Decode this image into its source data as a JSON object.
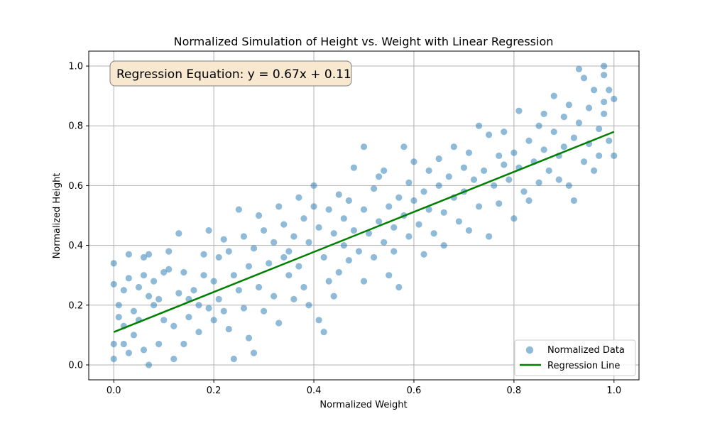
{
  "chart_data": {
    "type": "scatter",
    "title": "Normalized Simulation of Height vs. Weight with Linear Regression",
    "xlabel": "Normalized Weight",
    "ylabel": "Normalized Height",
    "xlim": [
      -0.05,
      1.05
    ],
    "ylim": [
      -0.05,
      1.05
    ],
    "xticks": [
      "0.0",
      "0.2",
      "0.4",
      "0.6",
      "0.8",
      "1.0"
    ],
    "yticks": [
      "0.0",
      "0.2",
      "0.4",
      "0.6",
      "0.8",
      "1.0"
    ],
    "grid": true,
    "legend_placement": "lower-right",
    "annotation": "Regression Equation: y = 0.67x + 0.11",
    "series": [
      {
        "name": "Normalized Data",
        "kind": "scatter",
        "color": "#1f77b4",
        "points": [
          [
            0.0,
            0.34
          ],
          [
            0.0,
            0.27
          ],
          [
            0.0,
            0.07
          ],
          [
            0.0,
            0.02
          ],
          [
            0.01,
            0.2
          ],
          [
            0.01,
            0.16
          ],
          [
            0.02,
            0.25
          ],
          [
            0.02,
            0.13
          ],
          [
            0.02,
            0.07
          ],
          [
            0.03,
            0.37
          ],
          [
            0.03,
            0.29
          ],
          [
            0.03,
            0.04
          ],
          [
            0.04,
            0.18
          ],
          [
            0.04,
            0.1
          ],
          [
            0.05,
            0.15
          ],
          [
            0.05,
            0.26
          ],
          [
            0.06,
            0.3
          ],
          [
            0.06,
            0.36
          ],
          [
            0.06,
            0.05
          ],
          [
            0.07,
            0.0
          ],
          [
            0.07,
            0.37
          ],
          [
            0.07,
            0.23
          ],
          [
            0.08,
            0.28
          ],
          [
            0.08,
            0.2
          ],
          [
            0.09,
            0.07
          ],
          [
            0.09,
            0.22
          ],
          [
            0.1,
            0.31
          ],
          [
            0.1,
            0.15
          ],
          [
            0.11,
            0.32
          ],
          [
            0.11,
            0.38
          ],
          [
            0.12,
            0.02
          ],
          [
            0.12,
            0.13
          ],
          [
            0.13,
            0.24
          ],
          [
            0.13,
            0.44
          ],
          [
            0.14,
            0.31
          ],
          [
            0.14,
            0.07
          ],
          [
            0.15,
            0.22
          ],
          [
            0.15,
            0.16
          ],
          [
            0.16,
            0.25
          ],
          [
            0.17,
            0.2
          ],
          [
            0.17,
            0.11
          ],
          [
            0.18,
            0.3
          ],
          [
            0.18,
            0.37
          ],
          [
            0.19,
            0.45
          ],
          [
            0.19,
            0.19
          ],
          [
            0.2,
            0.28
          ],
          [
            0.2,
            0.15
          ],
          [
            0.21,
            0.36
          ],
          [
            0.21,
            0.22
          ],
          [
            0.22,
            0.42
          ],
          [
            0.22,
            0.18
          ],
          [
            0.23,
            0.38
          ],
          [
            0.23,
            0.12
          ],
          [
            0.24,
            0.3
          ],
          [
            0.24,
            0.02
          ],
          [
            0.25,
            0.52
          ],
          [
            0.25,
            0.25
          ],
          [
            0.26,
            0.43
          ],
          [
            0.26,
            0.19
          ],
          [
            0.27,
            0.33
          ],
          [
            0.27,
            0.09
          ],
          [
            0.28,
            0.39
          ],
          [
            0.28,
            0.04
          ],
          [
            0.29,
            0.5
          ],
          [
            0.29,
            0.26
          ],
          [
            0.3,
            0.45
          ],
          [
            0.3,
            0.18
          ],
          [
            0.31,
            0.34
          ],
          [
            0.32,
            0.41
          ],
          [
            0.32,
            0.23
          ],
          [
            0.33,
            0.53
          ],
          [
            0.33,
            0.14
          ],
          [
            0.34,
            0.47
          ],
          [
            0.34,
            0.36
          ],
          [
            0.35,
            0.3
          ],
          [
            0.35,
            0.38
          ],
          [
            0.36,
            0.43
          ],
          [
            0.36,
            0.22
          ],
          [
            0.37,
            0.56
          ],
          [
            0.37,
            0.33
          ],
          [
            0.38,
            0.49
          ],
          [
            0.38,
            0.26
          ],
          [
            0.39,
            0.41
          ],
          [
            0.39,
            0.2
          ],
          [
            0.4,
            0.53
          ],
          [
            0.4,
            0.6
          ],
          [
            0.41,
            0.46
          ],
          [
            0.41,
            0.15
          ],
          [
            0.42,
            0.36
          ],
          [
            0.42,
            0.11
          ],
          [
            0.43,
            0.52
          ],
          [
            0.43,
            0.28
          ],
          [
            0.44,
            0.44
          ],
          [
            0.44,
            0.23
          ],
          [
            0.45,
            0.57
          ],
          [
            0.45,
            0.31
          ],
          [
            0.46,
            0.4
          ],
          [
            0.46,
            0.49
          ],
          [
            0.47,
            0.35
          ],
          [
            0.47,
            0.55
          ],
          [
            0.48,
            0.45
          ],
          [
            0.48,
            0.66
          ],
          [
            0.49,
            0.38
          ],
          [
            0.5,
            0.73
          ],
          [
            0.5,
            0.52
          ],
          [
            0.5,
            0.28
          ],
          [
            0.51,
            0.44
          ],
          [
            0.52,
            0.59
          ],
          [
            0.52,
            0.36
          ],
          [
            0.53,
            0.63
          ],
          [
            0.53,
            0.48
          ],
          [
            0.54,
            0.41
          ],
          [
            0.54,
            0.65
          ],
          [
            0.55,
            0.53
          ],
          [
            0.55,
            0.3
          ],
          [
            0.56,
            0.46
          ],
          [
            0.56,
            0.38
          ],
          [
            0.57,
            0.56
          ],
          [
            0.57,
            0.26
          ],
          [
            0.58,
            0.73
          ],
          [
            0.58,
            0.5
          ],
          [
            0.59,
            0.43
          ],
          [
            0.59,
            0.61
          ],
          [
            0.6,
            0.55
          ],
          [
            0.6,
            0.68
          ],
          [
            0.61,
            0.47
          ],
          [
            0.62,
            0.58
          ],
          [
            0.62,
            0.37
          ],
          [
            0.63,
            0.65
          ],
          [
            0.63,
            0.52
          ],
          [
            0.64,
            0.44
          ],
          [
            0.65,
            0.6
          ],
          [
            0.65,
            0.69
          ],
          [
            0.66,
            0.51
          ],
          [
            0.66,
            0.4
          ],
          [
            0.67,
            0.63
          ],
          [
            0.68,
            0.56
          ],
          [
            0.68,
            0.73
          ],
          [
            0.69,
            0.48
          ],
          [
            0.7,
            0.66
          ],
          [
            0.7,
            0.58
          ],
          [
            0.71,
            0.71
          ],
          [
            0.71,
            0.45
          ],
          [
            0.72,
            0.62
          ],
          [
            0.73,
            0.8
          ],
          [
            0.73,
            0.53
          ],
          [
            0.74,
            0.65
          ],
          [
            0.75,
            0.77
          ],
          [
            0.75,
            0.43
          ],
          [
            0.76,
            0.6
          ],
          [
            0.77,
            0.7
          ],
          [
            0.77,
            0.54
          ],
          [
            0.78,
            0.67
          ],
          [
            0.78,
            0.78
          ],
          [
            0.79,
            0.62
          ],
          [
            0.8,
            0.71
          ],
          [
            0.8,
            0.49
          ],
          [
            0.81,
            0.85
          ],
          [
            0.81,
            0.66
          ],
          [
            0.82,
            0.58
          ],
          [
            0.83,
            0.75
          ],
          [
            0.83,
            0.55
          ],
          [
            0.84,
            0.68
          ],
          [
            0.85,
            0.8
          ],
          [
            0.85,
            0.61
          ],
          [
            0.86,
            0.84
          ],
          [
            0.86,
            0.72
          ],
          [
            0.87,
            0.65
          ],
          [
            0.88,
            0.9
          ],
          [
            0.88,
            0.78
          ],
          [
            0.89,
            0.62
          ],
          [
            0.89,
            0.7
          ],
          [
            0.9,
            0.83
          ],
          [
            0.9,
            0.73
          ],
          [
            0.91,
            0.6
          ],
          [
            0.91,
            0.87
          ],
          [
            0.92,
            0.76
          ],
          [
            0.92,
            0.55
          ],
          [
            0.93,
            0.99
          ],
          [
            0.93,
            0.81
          ],
          [
            0.94,
            0.68
          ],
          [
            0.94,
            0.96
          ],
          [
            0.95,
            0.86
          ],
          [
            0.95,
            0.74
          ],
          [
            0.96,
            0.92
          ],
          [
            0.96,
            0.65
          ],
          [
            0.97,
            0.79
          ],
          [
            0.97,
            0.7
          ],
          [
            0.98,
            1.0
          ],
          [
            0.98,
            0.88
          ],
          [
            0.98,
            0.84
          ],
          [
            0.99,
            0.75
          ],
          [
            0.99,
            0.92
          ],
          [
            1.0,
            0.7
          ],
          [
            1.0,
            0.89
          ],
          [
            0.98,
            0.97
          ]
        ]
      },
      {
        "name": "Regression Line",
        "kind": "line",
        "color": "#008000",
        "slope": 0.67,
        "intercept": 0.11,
        "x_range": [
          0.0,
          1.0
        ]
      }
    ]
  }
}
